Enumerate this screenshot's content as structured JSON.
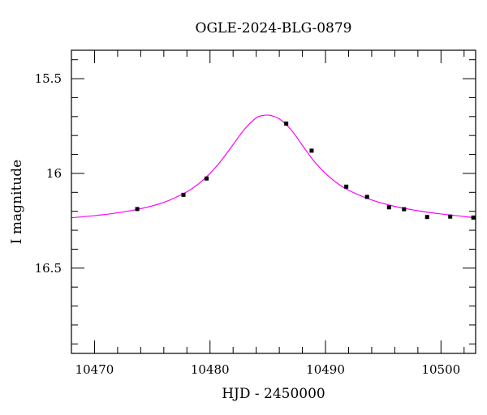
{
  "chart_data": {
    "type": "scatter",
    "title": "OGLE-2024-BLG-0879",
    "xlabel": "HJD - 2450000",
    "ylabel": "I magnitude",
    "xlim": [
      10468,
      10503
    ],
    "ylim": [
      16.95,
      15.35
    ],
    "y_inverted": true,
    "grid": false,
    "x_ticks": [
      10470,
      10480,
      10490,
      10500
    ],
    "x_tick_labels": [
      "10470",
      "10480",
      "10490",
      "10500"
    ],
    "y_ticks": [
      15.5,
      16,
      16.5
    ],
    "y_tick_labels": [
      "15.5",
      "16",
      "16.5"
    ],
    "series": [
      {
        "kind": "points",
        "color": "#000000",
        "x": [
          10473.7,
          10477.7,
          10479.7,
          10486.6,
          10488.8,
          10491.8,
          10493.6,
          10495.5,
          10496.8,
          10498.8,
          10500.8,
          10502.8
        ],
        "y": [
          16.188,
          16.113,
          16.027,
          15.737,
          15.88,
          16.07,
          16.124,
          16.179,
          16.189,
          16.23,
          16.228,
          16.233
        ],
        "err": [
          0.006,
          0.006,
          0.006,
          0.006,
          0.006,
          0.006,
          0.006,
          0.006,
          0.006,
          0.006,
          0.006,
          0.006
        ]
      },
      {
        "kind": "model",
        "color": "#ff00ff",
        "x": [
          10468,
          10470,
          10472,
          10474,
          10476,
          10478,
          10479,
          10480,
          10481,
          10482,
          10483,
          10484,
          10484.7,
          10485.3,
          10486,
          10487,
          10488,
          10489,
          10490,
          10491,
          10492,
          10494,
          10496,
          10498,
          10500,
          10503
        ],
        "y": [
          16.234,
          16.223,
          16.208,
          16.186,
          16.153,
          16.097,
          16.055,
          16.0,
          15.93,
          15.848,
          15.766,
          15.707,
          15.693,
          15.695,
          15.712,
          15.768,
          15.852,
          15.935,
          16.0,
          16.051,
          16.089,
          16.14,
          16.174,
          16.197,
          16.214,
          16.234
        ]
      }
    ]
  }
}
